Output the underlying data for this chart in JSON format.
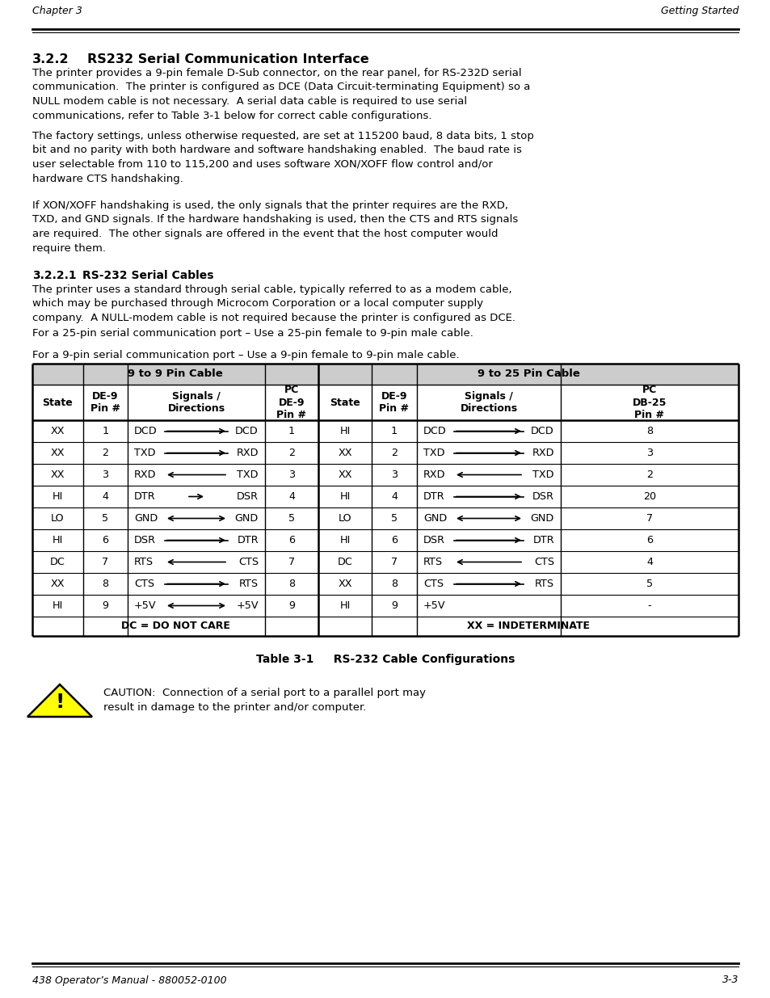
{
  "bg_color": "#ffffff",
  "header_left": "Chapter 3",
  "header_right": "Getting Started",
  "footer_left": "438 Operator’s Manual - 880052-0100",
  "footer_right": "3-3",
  "section_title_num": "3.2.2",
  "section_title_text": "RS232 Serial Communication Interface",
  "para1": "The printer provides a 9-pin female D-Sub connector, on the rear panel, for RS-232D serial\ncommunication.  The printer is configured as DCE (Data Circuit-terminating Equipment) so a\nNULL modem cable is not necessary.  A serial data cable is required to use serial\ncommunications, refer to Table 3-1 below for correct cable configurations.",
  "para2": "The factory settings, unless otherwise requested, are set at 115200 baud, 8 data bits, 1 stop\nbit and no parity with both hardware and software handshaking enabled.  The baud rate is\nuser selectable from 110 to 115,200 and uses software XON/XOFF flow control and/or\nhardware CTS handshaking.",
  "para3": "If XON/XOFF handshaking is used, the only signals that the printer requires are the RXD,\nTXD, and GND signals. If the hardware handshaking is used, then the CTS and RTS signals\nare required.  The other signals are offered in the event that the host computer would\nrequire them.",
  "sub_num": "3.2.2.1",
  "sub_title": "RS-232 Serial Cables",
  "sub_para1": "The printer uses a standard through serial cable, typically referred to as a modem cable,\nwhich may be purchased through Microcom Corporation or a local computer supply\ncompany.  A NULL-modem cable is not required because the printer is configured as DCE.",
  "sub_para2": "For a 25-pin serial communication port – Use a 25-pin female to 9-pin male cable.",
  "sub_para3": "For a 9-pin serial communication port – Use a 9-pin female to 9-pin male cable.",
  "table_caption": "Table 3-1     RS-232 Cable Configurations",
  "caution_text1": "CAUTION:  Connection of a serial port to a parallel port may",
  "caution_text2": "result in damage to the printer and/or computer.",
  "table_data_9to9": [
    [
      "XX",
      "1",
      "DCD",
      "right",
      "DCD",
      "1"
    ],
    [
      "XX",
      "2",
      "TXD",
      "right",
      "RXD",
      "2"
    ],
    [
      "XX",
      "3",
      "RXD",
      "left",
      "TXD",
      "3"
    ],
    [
      "HI",
      "4",
      "DTR",
      "right_short",
      "DSR",
      "4"
    ],
    [
      "LO",
      "5",
      "GND",
      "both",
      "GND",
      "5"
    ],
    [
      "HI",
      "6",
      "DSR",
      "right",
      "DTR",
      "6"
    ],
    [
      "DC",
      "7",
      "RTS",
      "left",
      "CTS",
      "7"
    ],
    [
      "XX",
      "8",
      "CTS",
      "right",
      "RTS",
      "8"
    ],
    [
      "HI",
      "9",
      "+5V",
      "both",
      "+5V",
      "9"
    ]
  ],
  "table_data_9to25": [
    [
      "HI",
      "1",
      "DCD",
      "right",
      "DCD",
      "8"
    ],
    [
      "XX",
      "2",
      "TXD",
      "right",
      "RXD",
      "3"
    ],
    [
      "XX",
      "3",
      "RXD",
      "left",
      "TXD",
      "2"
    ],
    [
      "HI",
      "4",
      "DTR",
      "right",
      "DSR",
      "20"
    ],
    [
      "LO",
      "5",
      "GND",
      "both",
      "GND",
      "7"
    ],
    [
      "HI",
      "6",
      "DSR",
      "right",
      "DTR",
      "6"
    ],
    [
      "DC",
      "7",
      "RTS",
      "left",
      "CTS",
      "4"
    ],
    [
      "XX",
      "8",
      "CTS",
      "right",
      "RTS",
      "5"
    ],
    [
      "HI",
      "9",
      "+5V",
      "none",
      "",
      "-"
    ]
  ]
}
